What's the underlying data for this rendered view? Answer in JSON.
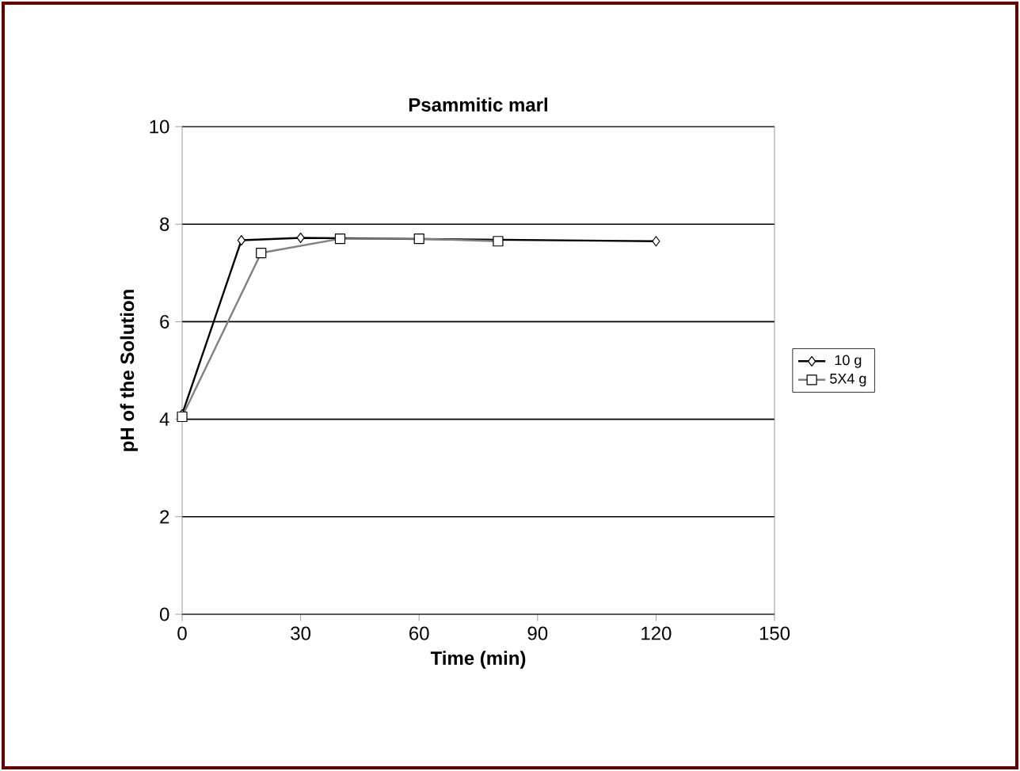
{
  "chart_data": {
    "type": "line",
    "title": "Psammitic marl",
    "xlabel": "Time  (min)",
    "ylabel": "pH of the Solution",
    "series": [
      {
        "name": "10 g",
        "color": "#000000",
        "marker": "diamond",
        "x": [
          0,
          15,
          30,
          120
        ],
        "values": [
          4.1,
          7.67,
          7.72,
          7.65
        ]
      },
      {
        "name": "5X4 g",
        "color": "#808080",
        "marker": "square",
        "x": [
          0,
          20,
          40,
          60,
          80
        ],
        "values": [
          4.05,
          7.41,
          7.7,
          7.7,
          7.65
        ]
      }
    ],
    "xlim": [
      0,
      150
    ],
    "xticks": [
      0,
      30,
      60,
      90,
      120,
      150
    ],
    "ylim": [
      0,
      10
    ],
    "yticks": [
      0,
      2,
      4,
      6,
      8,
      10
    ],
    "grid": "y",
    "legend": "right"
  }
}
